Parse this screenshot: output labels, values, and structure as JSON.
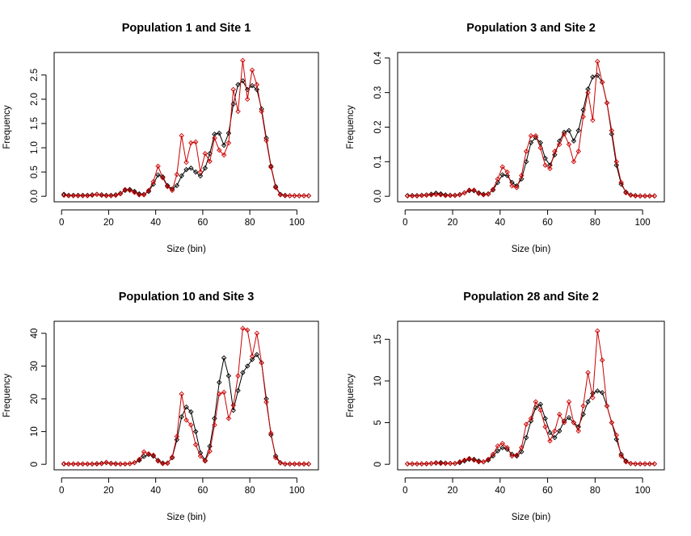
{
  "colors": {
    "series_black": "#000000",
    "series_red": "#cc0000",
    "frame": "#000000",
    "background": "#ffffff"
  },
  "chart_data": [
    {
      "type": "line",
      "title": "Population 1 and Site 1",
      "xlabel": "Size (bin)",
      "ylabel": "Frequency",
      "xlim": [
        1,
        105
      ],
      "ylim": [
        0,
        2.85
      ],
      "xticks": [
        0,
        20,
        40,
        60,
        80,
        100
      ],
      "yticks": [
        0.0,
        0.5,
        1.0,
        1.5,
        2.0,
        2.5
      ],
      "ytick_labels": [
        "0.0",
        "0.5",
        "1.0",
        "1.5",
        "2.0",
        "2.5"
      ],
      "grid": false,
      "series": [
        {
          "color": "#000000",
          "x": [
            1,
            3,
            5,
            7,
            9,
            11,
            13,
            15,
            17,
            19,
            21,
            23,
            25,
            27,
            29,
            31,
            33,
            35,
            37,
            39,
            41,
            43,
            45,
            47,
            49,
            51,
            53,
            55,
            57,
            59,
            61,
            63,
            65,
            67,
            69,
            71,
            73,
            75,
            77,
            79,
            81,
            83,
            85,
            87,
            89,
            91,
            93,
            95,
            97,
            99,
            101,
            103,
            105
          ],
          "y": [
            0.04,
            0.02,
            0.02,
            0.02,
            0.02,
            0.02,
            0.03,
            0.04,
            0.03,
            0.02,
            0.02,
            0.03,
            0.06,
            0.12,
            0.14,
            0.1,
            0.05,
            0.04,
            0.1,
            0.25,
            0.44,
            0.4,
            0.22,
            0.15,
            0.22,
            0.42,
            0.55,
            0.58,
            0.5,
            0.42,
            0.58,
            0.88,
            1.28,
            1.3,
            1.05,
            1.3,
            1.9,
            2.3,
            2.38,
            2.2,
            2.28,
            2.2,
            1.8,
            1.2,
            0.62,
            0.2,
            0.04,
            0.02,
            0.01,
            0.01,
            0.01,
            0.01,
            0.01
          ]
        },
        {
          "color": "#cc0000",
          "x": [
            1,
            3,
            5,
            7,
            9,
            11,
            13,
            15,
            17,
            19,
            21,
            23,
            25,
            27,
            29,
            31,
            33,
            35,
            37,
            39,
            41,
            43,
            45,
            47,
            49,
            51,
            53,
            55,
            57,
            59,
            61,
            63,
            65,
            67,
            69,
            71,
            73,
            75,
            77,
            79,
            81,
            83,
            85,
            87,
            89,
            91,
            93,
            95,
            97,
            99,
            101,
            103,
            105
          ],
          "y": [
            0.02,
            0.01,
            0.01,
            0.01,
            0.01,
            0.01,
            0.02,
            0.04,
            0.02,
            0.01,
            0.01,
            0.02,
            0.05,
            0.14,
            0.12,
            0.08,
            0.03,
            0.03,
            0.12,
            0.3,
            0.62,
            0.38,
            0.2,
            0.12,
            0.45,
            1.25,
            0.7,
            1.1,
            1.12,
            0.5,
            0.88,
            0.72,
            1.2,
            0.95,
            0.85,
            1.1,
            2.2,
            1.75,
            2.8,
            2.0,
            2.6,
            2.3,
            1.75,
            1.15,
            0.6,
            0.18,
            0.03,
            0.01,
            0.01,
            0.01,
            0.01,
            0.01,
            0.01
          ]
        }
      ]
    },
    {
      "type": "line",
      "title": "Population 3 and Site 2",
      "xlabel": "Size (bin)",
      "ylabel": "Frequency",
      "xlim": [
        1,
        105
      ],
      "ylim": [
        0,
        0.4
      ],
      "xticks": [
        0,
        20,
        40,
        60,
        80,
        100
      ],
      "yticks": [
        0.0,
        0.1,
        0.2,
        0.3,
        0.4
      ],
      "ytick_labels": [
        "0.0",
        "0.1",
        "0.2",
        "0.3",
        "0.4"
      ],
      "grid": false,
      "series": [
        {
          "color": "#000000",
          "x": [
            1,
            3,
            5,
            7,
            9,
            11,
            13,
            15,
            17,
            19,
            21,
            23,
            25,
            27,
            29,
            31,
            33,
            35,
            37,
            39,
            41,
            43,
            45,
            47,
            49,
            51,
            53,
            55,
            57,
            59,
            61,
            63,
            65,
            67,
            69,
            71,
            73,
            75,
            77,
            79,
            81,
            83,
            85,
            87,
            89,
            91,
            93,
            95,
            97,
            99,
            101,
            103,
            105
          ],
          "y": [
            0.002,
            0.002,
            0.002,
            0.003,
            0.004,
            0.006,
            0.009,
            0.007,
            0.004,
            0.003,
            0.003,
            0.005,
            0.01,
            0.016,
            0.016,
            0.01,
            0.006,
            0.007,
            0.018,
            0.04,
            0.062,
            0.06,
            0.04,
            0.03,
            0.05,
            0.1,
            0.155,
            0.17,
            0.155,
            0.11,
            0.09,
            0.12,
            0.16,
            0.185,
            0.19,
            0.16,
            0.19,
            0.25,
            0.31,
            0.345,
            0.35,
            0.33,
            0.27,
            0.18,
            0.09,
            0.035,
            0.012,
            0.004,
            0.002,
            0.001,
            0.001,
            0.001,
            0.001
          ]
        },
        {
          "color": "#cc0000",
          "x": [
            1,
            3,
            5,
            7,
            9,
            11,
            13,
            15,
            17,
            19,
            21,
            23,
            25,
            27,
            29,
            31,
            33,
            35,
            37,
            39,
            41,
            43,
            45,
            47,
            49,
            51,
            53,
            55,
            57,
            59,
            61,
            63,
            65,
            67,
            69,
            71,
            73,
            75,
            77,
            79,
            81,
            83,
            85,
            87,
            89,
            91,
            93,
            95,
            97,
            99,
            101,
            103,
            105
          ],
          "y": [
            0.001,
            0.001,
            0.001,
            0.002,
            0.003,
            0.004,
            0.005,
            0.004,
            0.002,
            0.002,
            0.002,
            0.004,
            0.01,
            0.018,
            0.018,
            0.008,
            0.004,
            0.006,
            0.02,
            0.05,
            0.085,
            0.07,
            0.03,
            0.025,
            0.06,
            0.13,
            0.175,
            0.175,
            0.14,
            0.09,
            0.08,
            0.13,
            0.15,
            0.18,
            0.15,
            0.1,
            0.13,
            0.23,
            0.3,
            0.22,
            0.39,
            0.33,
            0.27,
            0.19,
            0.1,
            0.04,
            0.01,
            0.003,
            0.001,
            0.001,
            0.001,
            0.001,
            0.001
          ]
        }
      ]
    },
    {
      "type": "line",
      "title": "Population 10 and Site 3",
      "xlabel": "Size (bin)",
      "ylabel": "Frequency",
      "xlim": [
        1,
        105
      ],
      "ylim": [
        0,
        42
      ],
      "xticks": [
        0,
        20,
        40,
        60,
        80,
        100
      ],
      "yticks": [
        0,
        10,
        20,
        30,
        40
      ],
      "ytick_labels": [
        "0",
        "10",
        "20",
        "30",
        "40"
      ],
      "grid": false,
      "series": [
        {
          "color": "#000000",
          "x": [
            1,
            3,
            5,
            7,
            9,
            11,
            13,
            15,
            17,
            19,
            21,
            23,
            25,
            27,
            29,
            31,
            33,
            35,
            37,
            39,
            41,
            43,
            45,
            47,
            49,
            51,
            53,
            55,
            57,
            59,
            61,
            63,
            65,
            67,
            69,
            71,
            73,
            75,
            77,
            79,
            81,
            83,
            85,
            87,
            89,
            91,
            93,
            95,
            97,
            99,
            101,
            103,
            105
          ],
          "y": [
            0.1,
            0.1,
            0.1,
            0.1,
            0.1,
            0.1,
            0.1,
            0.2,
            0.3,
            0.5,
            0.3,
            0.2,
            0.1,
            0.1,
            0.2,
            0.5,
            1.2,
            2.4,
            3.0,
            2.5,
            1.2,
            0.4,
            0.4,
            2.0,
            7.5,
            14.5,
            17.5,
            16.0,
            10.0,
            3.5,
            1.2,
            5.5,
            14.0,
            25.0,
            32.5,
            27.0,
            16.5,
            22.5,
            28.0,
            30.0,
            32.0,
            33.5,
            31.0,
            20.0,
            9.0,
            2.5,
            0.5,
            0.1,
            0.1,
            0.1,
            0.1,
            0.1,
            0.1
          ]
        },
        {
          "color": "#cc0000",
          "x": [
            1,
            3,
            5,
            7,
            9,
            11,
            13,
            15,
            17,
            19,
            21,
            23,
            25,
            27,
            29,
            31,
            33,
            35,
            37,
            39,
            41,
            43,
            45,
            47,
            49,
            51,
            53,
            55,
            57,
            59,
            61,
            63,
            65,
            67,
            69,
            71,
            73,
            75,
            77,
            79,
            81,
            83,
            85,
            87,
            89,
            91,
            93,
            95,
            97,
            99,
            101,
            103,
            105
          ],
          "y": [
            0.2,
            0.1,
            0.1,
            0.1,
            0.1,
            0.1,
            0.1,
            0.1,
            0.2,
            0.6,
            0.2,
            0.1,
            0.1,
            0.1,
            0.2,
            0.5,
            1.5,
            3.8,
            3.2,
            2.8,
            1.0,
            0.2,
            0.3,
            2.2,
            8.5,
            21.5,
            13.5,
            12.0,
            6.0,
            2.5,
            1.0,
            4.0,
            12.0,
            21.5,
            22.0,
            14.0,
            18.0,
            27.0,
            41.5,
            41.0,
            33.0,
            40.0,
            31.0,
            19.0,
            9.5,
            2.0,
            0.4,
            0.1,
            0.1,
            0.1,
            0.1,
            0.1,
            0.1
          ]
        }
      ]
    },
    {
      "type": "line",
      "title": "Population 28 and Site 2",
      "xlabel": "Size (bin)",
      "ylabel": "Frequency",
      "xlim": [
        1,
        105
      ],
      "ylim": [
        0,
        16.5
      ],
      "xticks": [
        0,
        20,
        40,
        60,
        80,
        100
      ],
      "yticks": [
        0,
        5,
        10,
        15
      ],
      "ytick_labels": [
        "0",
        "5",
        "10",
        "15"
      ],
      "grid": false,
      "series": [
        {
          "color": "#000000",
          "x": [
            1,
            3,
            5,
            7,
            9,
            11,
            13,
            15,
            17,
            19,
            21,
            23,
            25,
            27,
            29,
            31,
            33,
            35,
            37,
            39,
            41,
            43,
            45,
            47,
            49,
            51,
            53,
            55,
            57,
            59,
            61,
            63,
            65,
            67,
            69,
            71,
            73,
            75,
            77,
            79,
            81,
            83,
            85,
            87,
            89,
            91,
            93,
            95,
            97,
            99,
            101,
            103,
            105
          ],
          "y": [
            0.05,
            0.05,
            0.05,
            0.05,
            0.08,
            0.1,
            0.15,
            0.2,
            0.15,
            0.1,
            0.1,
            0.2,
            0.4,
            0.6,
            0.6,
            0.4,
            0.3,
            0.5,
            1.0,
            1.6,
            2.0,
            1.8,
            1.2,
            1.0,
            1.5,
            3.2,
            5.2,
            6.8,
            7.2,
            5.5,
            3.8,
            3.2,
            4.0,
            5.2,
            5.6,
            5.0,
            4.5,
            6.0,
            7.5,
            8.5,
            8.8,
            8.6,
            7.0,
            5.0,
            3.0,
            1.2,
            0.4,
            0.1,
            0.05,
            0.05,
            0.05,
            0.05,
            0.05
          ]
        },
        {
          "color": "#cc0000",
          "x": [
            1,
            3,
            5,
            7,
            9,
            11,
            13,
            15,
            17,
            19,
            21,
            23,
            25,
            27,
            29,
            31,
            33,
            35,
            37,
            39,
            41,
            43,
            45,
            47,
            49,
            51,
            53,
            55,
            57,
            59,
            61,
            63,
            65,
            67,
            69,
            71,
            73,
            75,
            77,
            79,
            81,
            83,
            85,
            87,
            89,
            91,
            93,
            95,
            97,
            99,
            101,
            103,
            105
          ],
          "y": [
            0.05,
            0.05,
            0.05,
            0.05,
            0.05,
            0.1,
            0.2,
            0.1,
            0.1,
            0.1,
            0.1,
            0.3,
            0.5,
            0.7,
            0.5,
            0.3,
            0.3,
            0.6,
            1.2,
            2.2,
            2.5,
            2.0,
            1.0,
            1.1,
            2.0,
            4.8,
            5.5,
            7.5,
            6.5,
            4.5,
            2.8,
            4.0,
            6.0,
            5.0,
            7.5,
            5.0,
            4.0,
            7.0,
            11.0,
            8.0,
            16.0,
            12.5,
            7.0,
            5.0,
            3.5,
            1.0,
            0.3,
            0.1,
            0.05,
            0.05,
            0.05,
            0.05,
            0.05
          ]
        }
      ]
    }
  ]
}
